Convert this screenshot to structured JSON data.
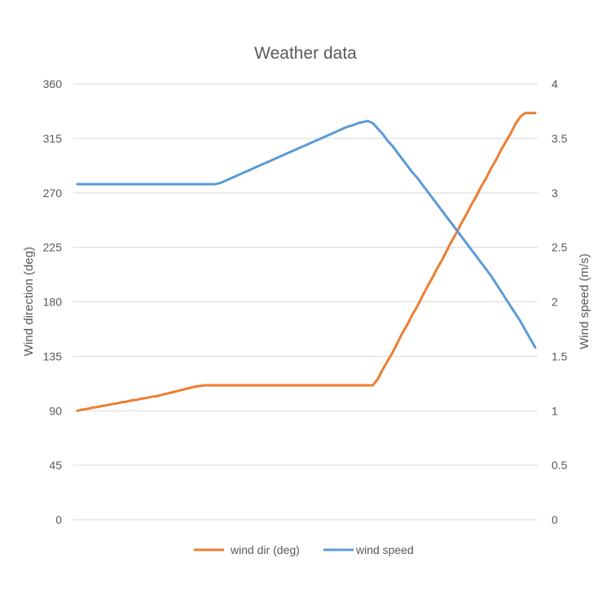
{
  "chart_data": {
    "type": "line",
    "title": "Weather data",
    "ylabel_left": "Wind direction (deg)",
    "ylabel_right": "Wind speed (m/s)",
    "xlabel": "",
    "ylim_left": [
      0,
      360
    ],
    "ylim_right": [
      0,
      4
    ],
    "yticks_left": [
      "0",
      "45",
      "90",
      "135",
      "180",
      "225",
      "270",
      "315",
      "360"
    ],
    "yticks_right": [
      "0",
      "0.5",
      "1",
      "1.5",
      "2",
      "2.5",
      "3",
      "3.5",
      "4"
    ],
    "grid": true,
    "legend_position": "bottom",
    "x": [
      0,
      1,
      2,
      3,
      4,
      5,
      6,
      7,
      8,
      9,
      10,
      11,
      12,
      13,
      14,
      15,
      16,
      17,
      18,
      19,
      20,
      21,
      22,
      23,
      24,
      25,
      26,
      27,
      28,
      29,
      30,
      31,
      32,
      33,
      34,
      35,
      36,
      37,
      38,
      39,
      40,
      41,
      42,
      43,
      44,
      45,
      46,
      47,
      48,
      49,
      50,
      51,
      52,
      53,
      54,
      55,
      56,
      57,
      58,
      59,
      60,
      61,
      62,
      63,
      64,
      65,
      66,
      67,
      68,
      69,
      70,
      71,
      72,
      73,
      74,
      75,
      76,
      77,
      78,
      79,
      80,
      81,
      82,
      83,
      84,
      85,
      86,
      87,
      88,
      89,
      90,
      91,
      92,
      93
    ],
    "series": [
      {
        "name": "wind dir (deg)",
        "axis": "left",
        "color": "#ed7d31",
        "values": [
          90,
          91,
          91.5,
          92.5,
          93,
          94,
          94.5,
          95.5,
          96,
          97,
          97.5,
          98.5,
          99,
          100,
          100.5,
          101.5,
          102,
          103,
          104,
          105,
          106,
          107,
          108,
          109,
          110,
          110.5,
          111,
          111,
          111,
          111,
          111,
          111,
          111,
          111,
          111,
          111,
          111,
          111,
          111,
          111,
          111,
          111,
          111,
          111,
          111,
          111,
          111,
          111,
          111,
          111,
          111,
          111,
          111,
          111,
          111,
          111,
          111,
          111,
          111,
          111,
          111,
          116,
          124,
          131,
          138,
          146,
          154,
          161,
          169,
          176,
          184,
          192,
          199,
          207,
          214,
          222,
          230,
          237,
          245,
          252,
          260,
          267,
          275,
          282,
          290,
          297,
          305,
          312,
          319,
          327,
          333,
          336,
          336,
          336
        ]
      },
      {
        "name": "wind speed",
        "axis": "right",
        "color": "#5b9bd5",
        "values": [
          3.08,
          3.08,
          3.08,
          3.08,
          3.08,
          3.08,
          3.08,
          3.08,
          3.08,
          3.08,
          3.08,
          3.08,
          3.08,
          3.08,
          3.08,
          3.08,
          3.08,
          3.08,
          3.08,
          3.08,
          3.08,
          3.08,
          3.08,
          3.08,
          3.08,
          3.08,
          3.08,
          3.08,
          3.08,
          3.09,
          3.11,
          3.13,
          3.15,
          3.17,
          3.19,
          3.21,
          3.23,
          3.25,
          3.27,
          3.29,
          3.31,
          3.33,
          3.35,
          3.37,
          3.39,
          3.41,
          3.43,
          3.45,
          3.47,
          3.49,
          3.51,
          3.53,
          3.55,
          3.57,
          3.59,
          3.61,
          3.62,
          3.64,
          3.65,
          3.66,
          3.64,
          3.59,
          3.54,
          3.48,
          3.43,
          3.37,
          3.31,
          3.25,
          3.19,
          3.14,
          3.08,
          3.02,
          2.96,
          2.9,
          2.84,
          2.78,
          2.72,
          2.66,
          2.6,
          2.54,
          2.48,
          2.42,
          2.36,
          2.3,
          2.24,
          2.17,
          2.1,
          2.03,
          1.96,
          1.89,
          1.82,
          1.74,
          1.66,
          1.58
        ]
      }
    ]
  }
}
